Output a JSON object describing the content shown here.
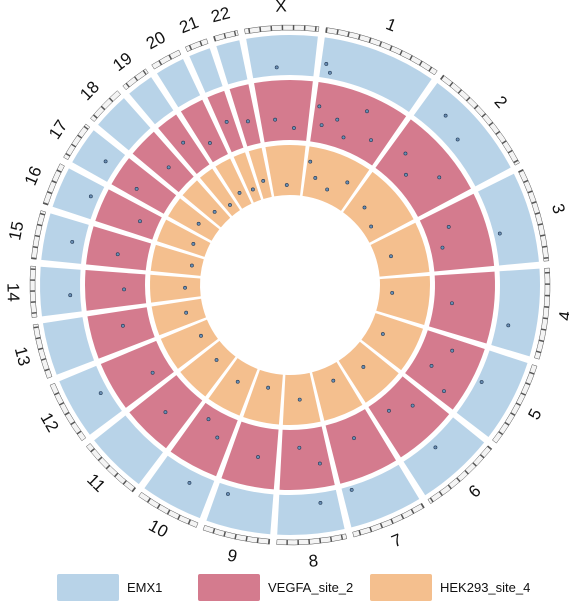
{
  "chart_data": {
    "type": "circos",
    "chromosomes": [
      {
        "name": "1",
        "length": 249
      },
      {
        "name": "2",
        "length": 243
      },
      {
        "name": "3",
        "length": 198
      },
      {
        "name": "4",
        "length": 191
      },
      {
        "name": "5",
        "length": 181
      },
      {
        "name": "6",
        "length": 171
      },
      {
        "name": "7",
        "length": 159
      },
      {
        "name": "8",
        "length": 146
      },
      {
        "name": "9",
        "length": 141
      },
      {
        "name": "10",
        "length": 136
      },
      {
        "name": "11",
        "length": 135
      },
      {
        "name": "12",
        "length": 133
      },
      {
        "name": "13",
        "length": 115
      },
      {
        "name": "14",
        "length": 107
      },
      {
        "name": "15",
        "length": 102
      },
      {
        "name": "16",
        "length": 90
      },
      {
        "name": "17",
        "length": 83
      },
      {
        "name": "18",
        "length": 80
      },
      {
        "name": "19",
        "length": 59
      },
      {
        "name": "20",
        "length": 64
      },
      {
        "name": "21",
        "length": 47
      },
      {
        "name": "22",
        "length": 51
      },
      {
        "name": "X",
        "length": 155
      }
    ],
    "series": [
      {
        "name": "EMX1",
        "color": "#b8d3e8",
        "points": [
          {
            "chr": "1",
            "pos": 0.05,
            "value": 0.35
          },
          {
            "chr": "1",
            "pos": 0.1,
            "value": 0.15
          },
          {
            "chr": "2",
            "pos": 0.25,
            "value": 0.5
          },
          {
            "chr": "2",
            "pos": 0.5,
            "value": 0.3
          },
          {
            "chr": "3",
            "pos": 0.6,
            "value": 0.15
          },
          {
            "chr": "4",
            "pos": 0.7,
            "value": 0.3
          },
          {
            "chr": "5",
            "pos": 0.45,
            "value": 0.12
          },
          {
            "chr": "6",
            "pos": 0.5,
            "value": 0.2
          },
          {
            "chr": "7",
            "pos": 0.85,
            "value": 0.1
          },
          {
            "chr": "8",
            "pos": 0.3,
            "value": 0.25
          },
          {
            "chr": "9",
            "pos": 0.8,
            "value": 0.2
          },
          {
            "chr": "10",
            "pos": 0.4,
            "value": 0.3
          },
          {
            "chr": "12",
            "pos": 0.5,
            "value": 0.2
          },
          {
            "chr": "14",
            "pos": 0.4,
            "value": 0.25
          },
          {
            "chr": "15",
            "pos": 0.5,
            "value": 0.3
          },
          {
            "chr": "16",
            "pos": 0.6,
            "value": 0.2
          },
          {
            "chr": "17",
            "pos": 0.5,
            "value": 0.3
          },
          {
            "chr": "X",
            "pos": 0.4,
            "value": 0.2
          }
        ]
      },
      {
        "name": "VEGFA_site_2",
        "color": "#d47b8e",
        "points": [
          {
            "chr": "1",
            "pos": 0.05,
            "value": 0.6
          },
          {
            "chr": "1",
            "pos": 0.12,
            "value": 0.3
          },
          {
            "chr": "1",
            "pos": 0.3,
            "value": 0.45
          },
          {
            "chr": "1",
            "pos": 0.45,
            "value": 0.2
          },
          {
            "chr": "1",
            "pos": 0.6,
            "value": 0.75
          },
          {
            "chr": "1",
            "pos": 0.8,
            "value": 0.35
          },
          {
            "chr": "2",
            "pos": 0.2,
            "value": 0.5
          },
          {
            "chr": "2",
            "pos": 0.4,
            "value": 0.25
          },
          {
            "chr": "2",
            "pos": 0.7,
            "value": 0.65
          },
          {
            "chr": "3",
            "pos": 0.3,
            "value": 0.4
          },
          {
            "chr": "3",
            "pos": 0.6,
            "value": 0.2
          },
          {
            "chr": "4",
            "pos": 0.5,
            "value": 0.3
          },
          {
            "chr": "5",
            "pos": 0.2,
            "value": 0.5
          },
          {
            "chr": "5",
            "pos": 0.6,
            "value": 0.3
          },
          {
            "chr": "5",
            "pos": 0.85,
            "value": 0.7
          },
          {
            "chr": "6",
            "pos": 0.3,
            "value": 0.45
          },
          {
            "chr": "6",
            "pos": 0.7,
            "value": 0.25
          },
          {
            "chr": "7",
            "pos": 0.5,
            "value": 0.35
          },
          {
            "chr": "8",
            "pos": 0.2,
            "value": 0.6
          },
          {
            "chr": "8",
            "pos": 0.6,
            "value": 0.3
          },
          {
            "chr": "9",
            "pos": 0.4,
            "value": 0.5
          },
          {
            "chr": "10",
            "pos": 0.3,
            "value": 0.4
          },
          {
            "chr": "10",
            "pos": 0.7,
            "value": 0.2
          },
          {
            "chr": "11",
            "pos": 0.5,
            "value": 0.55
          },
          {
            "chr": "12",
            "pos": 0.3,
            "value": 0.3
          },
          {
            "chr": "13",
            "pos": 0.6,
            "value": 0.45
          },
          {
            "chr": "14",
            "pos": 0.5,
            "value": 0.35
          },
          {
            "chr": "15",
            "pos": 0.4,
            "value": 0.5
          },
          {
            "chr": "16",
            "pos": 0.5,
            "value": 0.3
          },
          {
            "chr": "17",
            "pos": 0.3,
            "value": 0.6
          },
          {
            "chr": "18",
            "pos": 0.5,
            "value": 0.4
          },
          {
            "chr": "19",
            "pos": 0.5,
            "value": 0.55
          },
          {
            "chr": "20",
            "pos": 0.4,
            "value": 0.3
          },
          {
            "chr": "21",
            "pos": 0.5,
            "value": 0.5
          },
          {
            "chr": "22",
            "pos": 0.5,
            "value": 0.4
          },
          {
            "chr": "X",
            "pos": 0.3,
            "value": 0.35
          },
          {
            "chr": "X",
            "pos": 0.7,
            "value": 0.2
          }
        ]
      },
      {
        "name": "HEK293_site_4",
        "color": "#f4bf8e",
        "points": [
          {
            "chr": "1",
            "pos": 0.05,
            "value": 0.7
          },
          {
            "chr": "1",
            "pos": 0.2,
            "value": 0.4
          },
          {
            "chr": "1",
            "pos": 0.5,
            "value": 0.25
          },
          {
            "chr": "1",
            "pos": 0.8,
            "value": 0.55
          },
          {
            "chr": "2",
            "pos": 0.3,
            "value": 0.35
          },
          {
            "chr": "2",
            "pos": 0.7,
            "value": 0.2
          },
          {
            "chr": "3",
            "pos": 0.5,
            "value": 0.3
          },
          {
            "chr": "4",
            "pos": 0.4,
            "value": 0.25
          },
          {
            "chr": "5",
            "pos": 0.5,
            "value": 0.3
          },
          {
            "chr": "6",
            "pos": 0.5,
            "value": 0.4
          },
          {
            "chr": "7",
            "pos": 0.4,
            "value": 0.3
          },
          {
            "chr": "8",
            "pos": 0.5,
            "value": 0.5
          },
          {
            "chr": "9",
            "pos": 0.5,
            "value": 0.3
          },
          {
            "chr": "10",
            "pos": 0.5,
            "value": 0.4
          },
          {
            "chr": "11",
            "pos": 0.5,
            "value": 0.3
          },
          {
            "chr": "12",
            "pos": 0.5,
            "value": 0.25
          },
          {
            "chr": "13",
            "pos": 0.5,
            "value": 0.35
          },
          {
            "chr": "14",
            "pos": 0.5,
            "value": 0.3
          },
          {
            "chr": "15",
            "pos": 0.5,
            "value": 0.2
          },
          {
            "chr": "16",
            "pos": 0.5,
            "value": 0.3
          },
          {
            "chr": "17",
            "pos": 0.5,
            "value": 0.4
          },
          {
            "chr": "18",
            "pos": 0.5,
            "value": 0.3
          },
          {
            "chr": "19",
            "pos": 0.5,
            "value": 0.2
          },
          {
            "chr": "20",
            "pos": 0.5,
            "value": 0.3
          },
          {
            "chr": "21",
            "pos": 0.5,
            "value": 0.25
          },
          {
            "chr": "22",
            "pos": 0.5,
            "value": 0.35
          },
          {
            "chr": "X",
            "pos": 0.5,
            "value": 0.2
          }
        ]
      }
    ],
    "legend": {
      "placement": "bottom",
      "entries": [
        "EMX1",
        "VEGFA_site_2",
        "HEK293_site_4"
      ]
    }
  }
}
